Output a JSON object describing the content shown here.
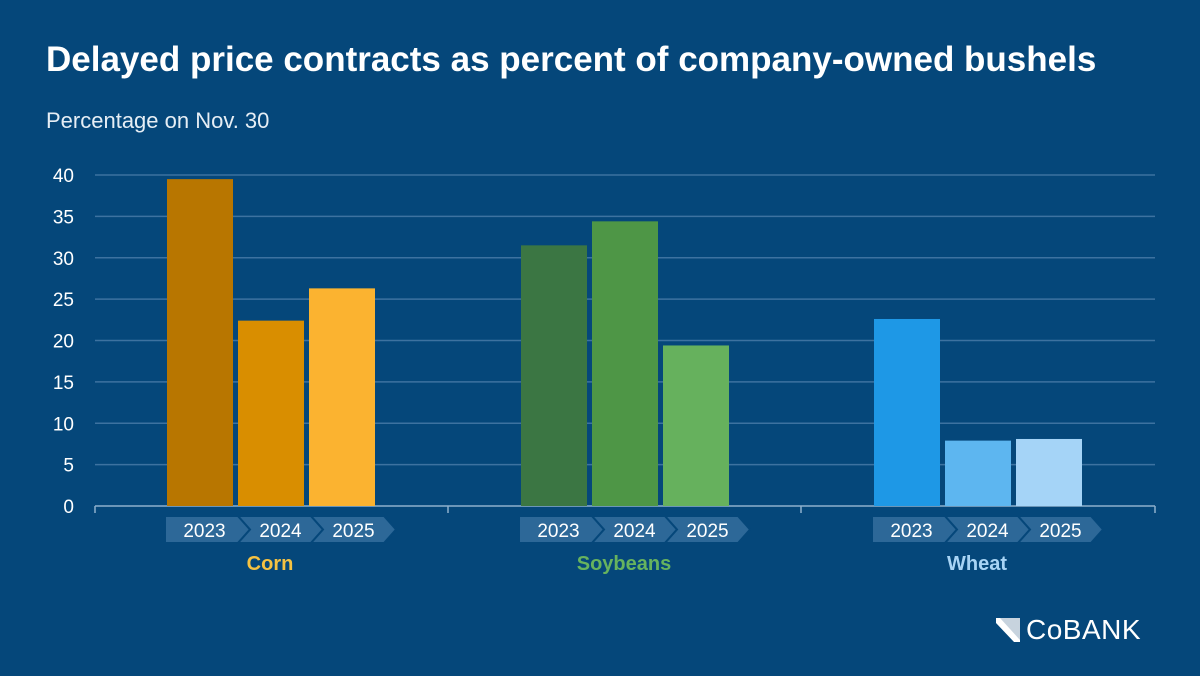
{
  "chart_data": {
    "type": "bar",
    "title": "Delayed price contracts as percent of company-owned bushels",
    "subtitle": "Percentage on Nov. 30",
    "ylim": [
      0,
      40
    ],
    "yticks": [
      "0",
      "5",
      "10",
      "15",
      "20",
      "25",
      "30",
      "35",
      "40"
    ],
    "grid": true,
    "groups": [
      {
        "name": "Corn",
        "label_color": "#f5c242",
        "categories": [
          "2023",
          "2024",
          "2025"
        ],
        "values": [
          39.5,
          22.4,
          26.3
        ],
        "colors": [
          "#b87600",
          "#d98e00",
          "#fbb330"
        ]
      },
      {
        "name": "Soybeans",
        "label_color": "#67b35e",
        "categories": [
          "2023",
          "2024",
          "2025"
        ],
        "values": [
          31.5,
          34.4,
          19.4
        ],
        "colors": [
          "#3b7643",
          "#4e9646",
          "#66b15d"
        ]
      },
      {
        "name": "Wheat",
        "label_color": "#a8d4f5",
        "categories": [
          "2023",
          "2024",
          "2025"
        ],
        "values": [
          22.6,
          7.9,
          8.1
        ],
        "colors": [
          "#1e98e6",
          "#5db6f0",
          "#a5d4f7"
        ]
      }
    ]
  },
  "logo": {
    "text": "CoBANK"
  }
}
